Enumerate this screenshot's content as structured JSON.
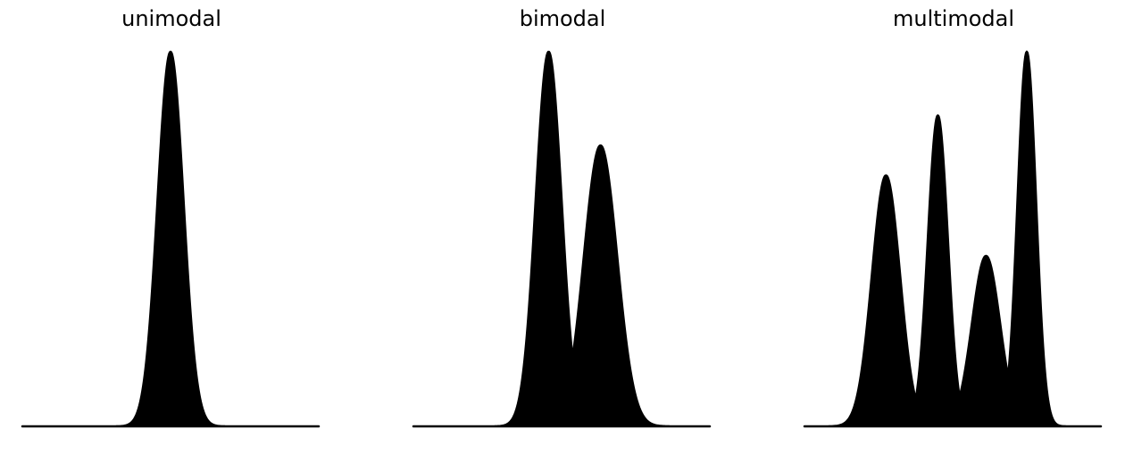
{
  "chart_data": [
    {
      "type": "area",
      "title": "unimodal",
      "xlabel": "",
      "ylabel": "",
      "grid": false,
      "axes_visible": false,
      "fill_color": "#000000",
      "xlim": [
        -4,
        4
      ],
      "ylim": [
        0,
        1
      ],
      "components": [
        {
          "mean": 0.0,
          "sd": 0.35,
          "peak": 1.0
        }
      ]
    },
    {
      "type": "area",
      "title": "bimodal",
      "xlabel": "",
      "ylabel": "",
      "grid": false,
      "axes_visible": false,
      "fill_color": "#000000",
      "xlim": [
        -4,
        4
      ],
      "ylim": [
        0,
        1
      ],
      "components": [
        {
          "mean": -0.35,
          "sd": 0.35,
          "peak": 1.0
        },
        {
          "mean": 1.05,
          "sd": 0.45,
          "peak": 0.75
        }
      ]
    },
    {
      "type": "area",
      "title": "multimodal",
      "xlabel": "",
      "ylabel": "",
      "grid": false,
      "axes_visible": false,
      "fill_color": "#000000",
      "xlim": [
        -4,
        4
      ],
      "ylim": [
        0,
        1
      ],
      "components": [
        {
          "mean": -1.8,
          "sd": 0.38,
          "peak": 0.67
        },
        {
          "mean": -0.4,
          "sd": 0.27,
          "peak": 0.83
        },
        {
          "mean": 0.9,
          "sd": 0.38,
          "peak": 0.455
        },
        {
          "mean": 2.0,
          "sd": 0.25,
          "peak": 1.0
        }
      ]
    }
  ]
}
